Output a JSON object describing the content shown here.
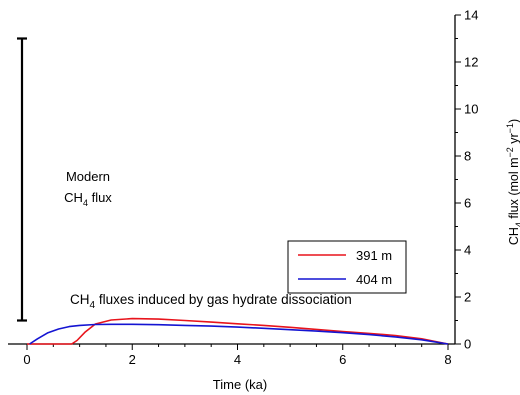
{
  "chart_data": {
    "type": "line",
    "xlabel": "Time (ka)",
    "ylabel": {
      "prefix": "CH",
      "sub": "4",
      "mid": " flux (mol m",
      "sup1": "−2",
      "mid2": " yr",
      "sup2": "−1",
      "suffix": ")"
    },
    "xlim": [
      0,
      8
    ],
    "ylim": [
      0,
      14
    ],
    "x_ticks": [
      0,
      2,
      4,
      6,
      8
    ],
    "y_ticks": [
      0,
      2,
      4,
      6,
      8,
      10,
      12,
      14
    ],
    "grid": false,
    "legend": "center-right",
    "series": [
      {
        "name": "391 m",
        "color": "#e8141c",
        "x": [
          0.0,
          0.85,
          0.95,
          1.1,
          1.3,
          1.6,
          2.0,
          2.5,
          3.0,
          3.5,
          4.0,
          4.5,
          5.0,
          5.5,
          6.0,
          6.5,
          7.0,
          7.5,
          8.0
        ],
        "y": [
          0.0,
          0.0,
          0.15,
          0.5,
          0.85,
          1.02,
          1.08,
          1.06,
          1.0,
          0.93,
          0.86,
          0.79,
          0.71,
          0.62,
          0.53,
          0.45,
          0.36,
          0.22,
          0.0
        ]
      },
      {
        "name": "404 m",
        "color": "#1414d2",
        "x": [
          0.05,
          0.2,
          0.4,
          0.6,
          0.8,
          1.0,
          1.3,
          1.6,
          2.0,
          2.5,
          3.0,
          3.5,
          4.0,
          4.5,
          5.0,
          5.5,
          6.0,
          6.5,
          7.0,
          7.5,
          8.0
        ],
        "y": [
          0.0,
          0.22,
          0.48,
          0.64,
          0.74,
          0.79,
          0.83,
          0.84,
          0.84,
          0.82,
          0.79,
          0.76,
          0.72,
          0.67,
          0.61,
          0.55,
          0.48,
          0.4,
          0.3,
          0.18,
          0.0
        ]
      }
    ],
    "annotations": {
      "modern_flux": {
        "line1": "Modern",
        "line2_prefix": "CH",
        "line2_sub": "4",
        "line2_suffix": " flux",
        "range": [
          1.0,
          13.0
        ]
      },
      "hydrate": {
        "prefix": "CH",
        "sub": "4",
        "suffix": " fluxes induced by gas hydrate dissociation"
      }
    }
  }
}
